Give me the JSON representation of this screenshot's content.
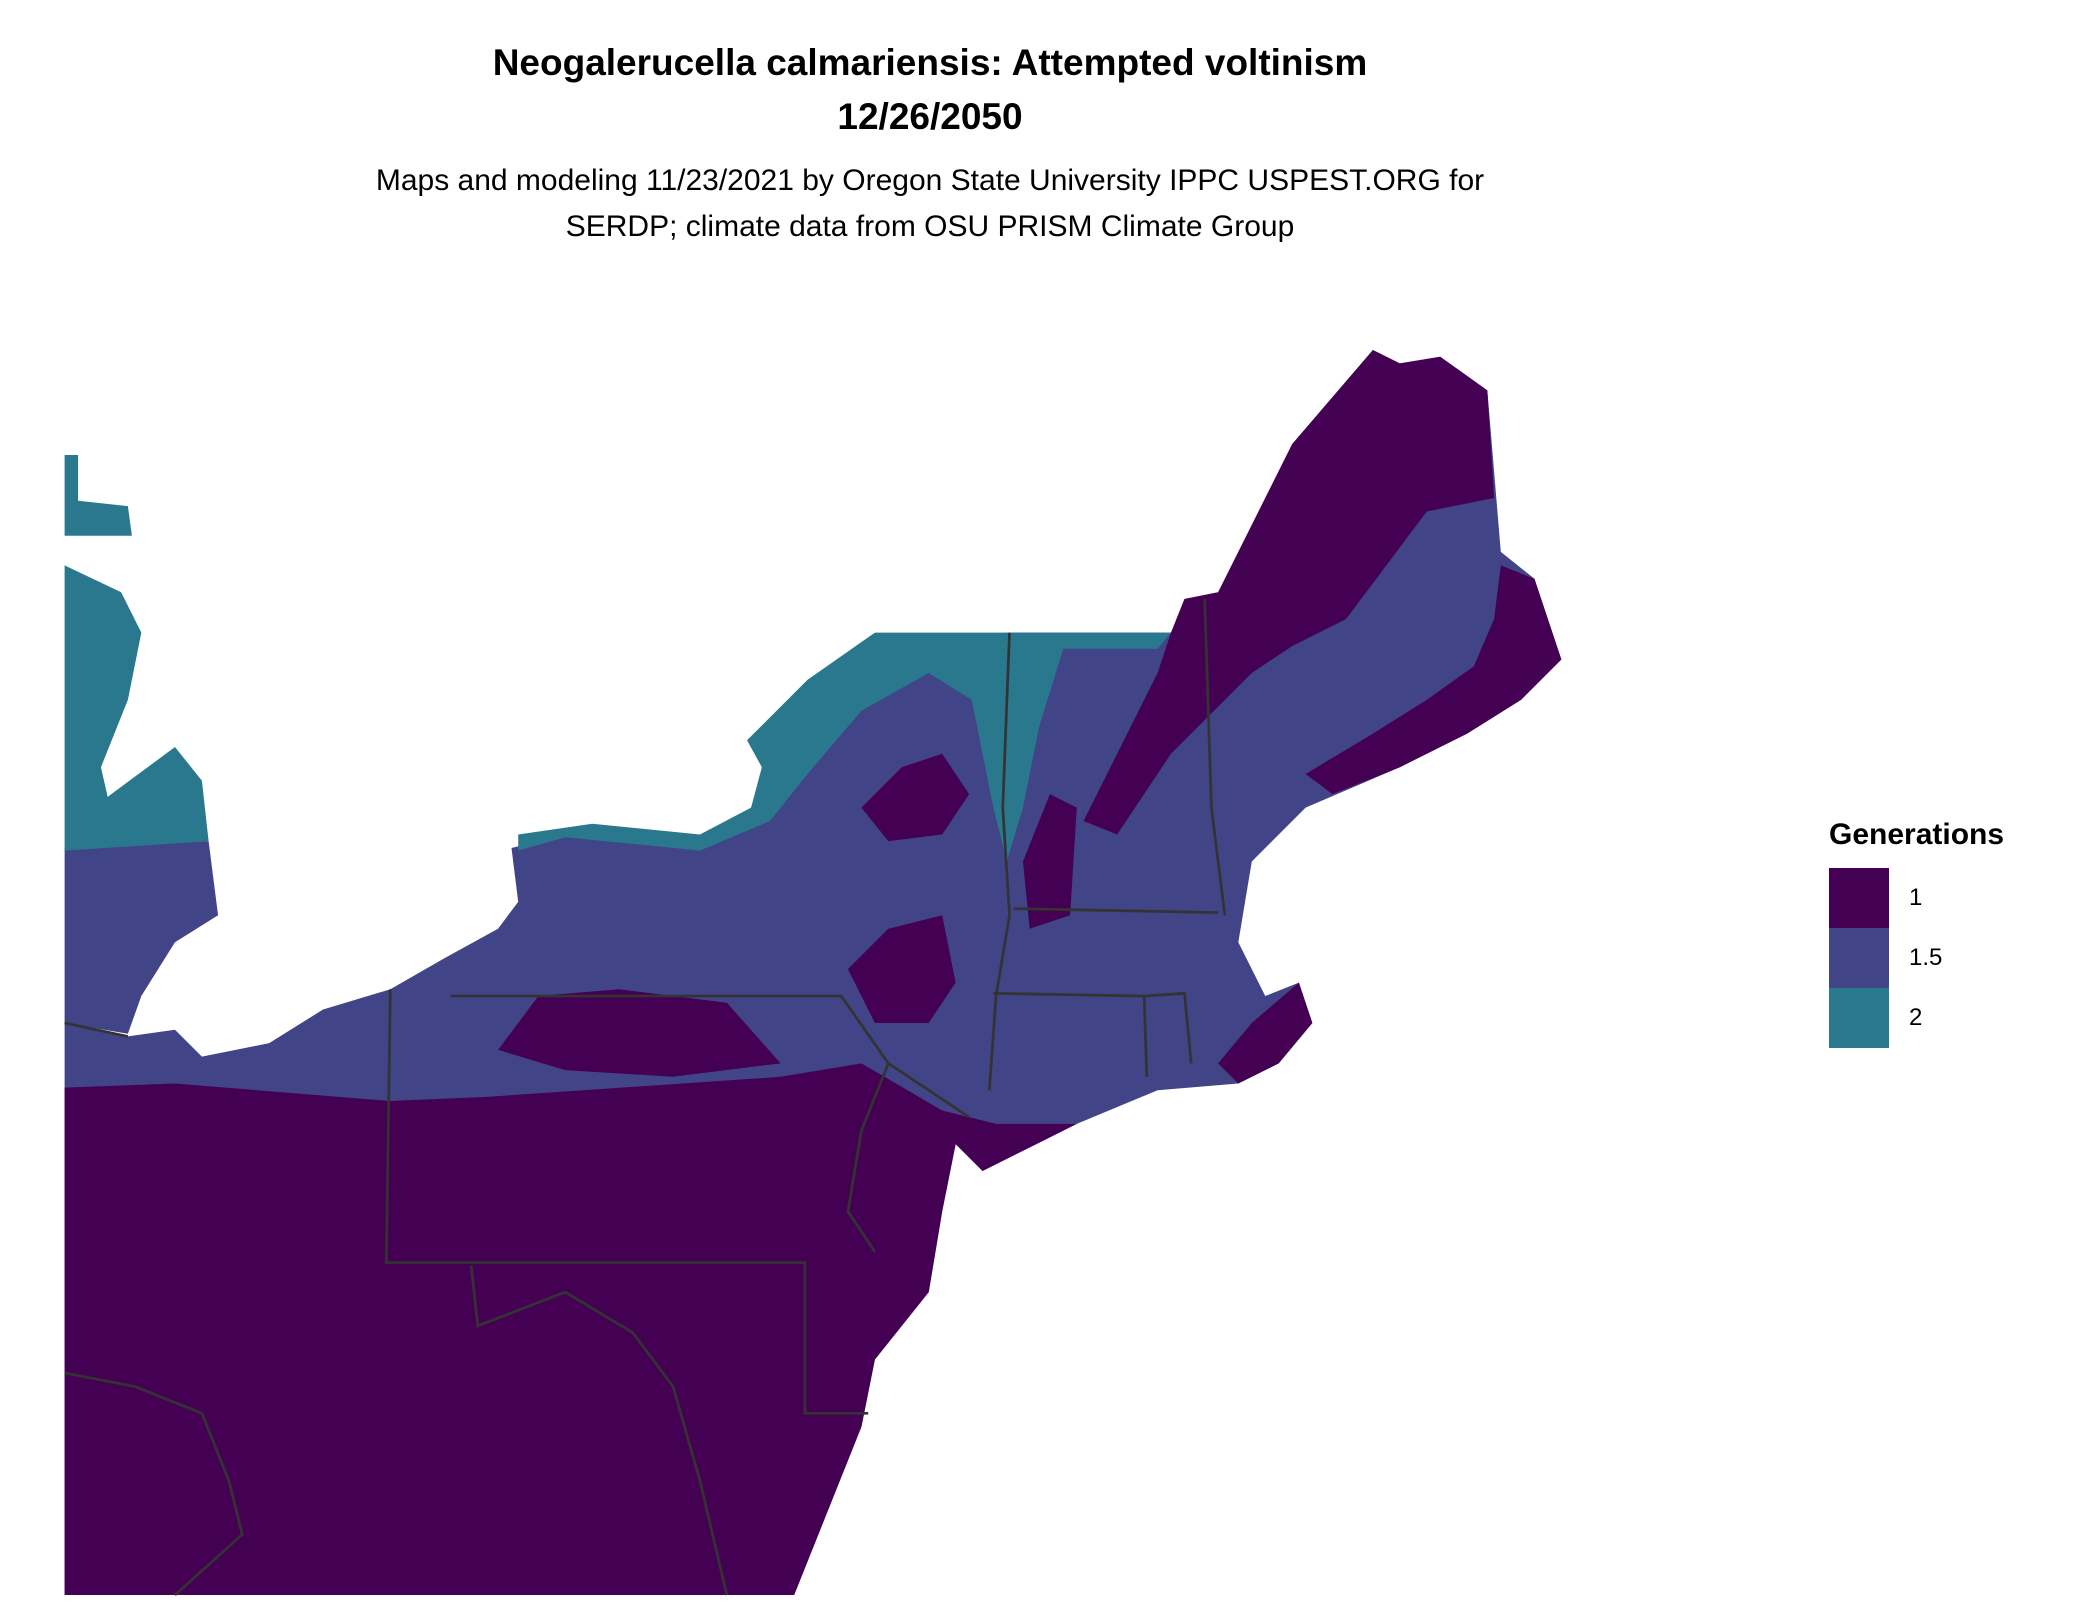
{
  "title": {
    "line1": "Neogalerucella calmariensis: Attempted voltinism",
    "line2": "12/26/2050"
  },
  "subtitle": {
    "line1": "Maps and modeling 11/23/2021 by Oregon State University IPPC USPEST.ORG for",
    "line2": "SERDP; climate data from OSU PRISM Climate Group"
  },
  "legend": {
    "title": "Generations",
    "items": [
      {
        "label": "1",
        "color": "#440154"
      },
      {
        "label": "1.5",
        "color": "#414487"
      },
      {
        "label": "2",
        "color": "#2A788E"
      }
    ]
  },
  "map": {
    "region": "Northeastern United States",
    "background": "#FFFFFF",
    "border_color": "#333333"
  }
}
